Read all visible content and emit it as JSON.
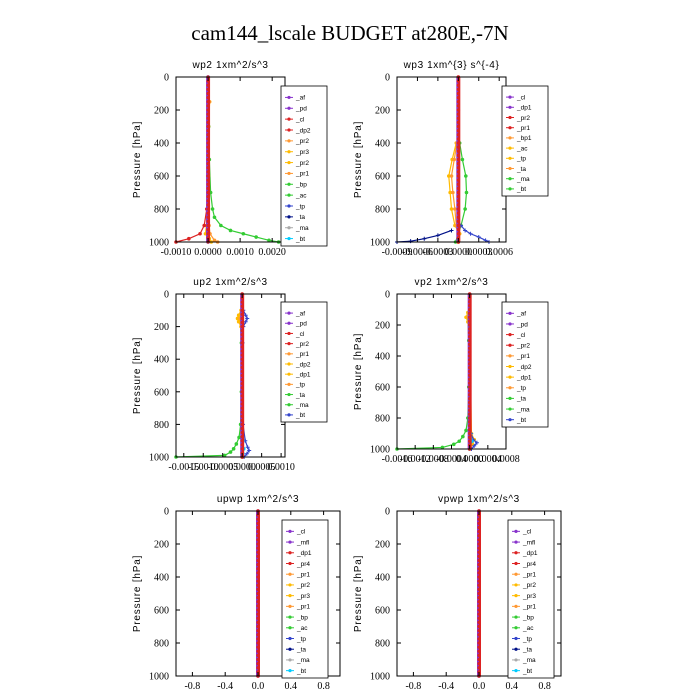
{
  "figure_title": "cam144_lscale  BUDGET at280E,-7N",
  "chart_data": [
    {
      "type": "line",
      "id": "wp2",
      "title": "wp2  1xm^2/s^3",
      "ylabel": "Pressure [hPa]",
      "xlabel": "",
      "xlim": [
        -0.001,
        0.0024
      ],
      "ylim": [
        1000,
        0
      ],
      "xticks": [
        -0.001,
        0.0,
        0.001,
        0.002
      ],
      "xtick_labels": [
        "-0.0010",
        "0.0000",
        "0.0010",
        "0.0020"
      ],
      "yticks": [
        0,
        200,
        400,
        600,
        800,
        1000
      ],
      "ytick_labels": [
        "0",
        "200",
        "400",
        "600",
        "800",
        "1000"
      ],
      "legend": [
        "_af",
        "_pd",
        "_cl",
        "_dp2",
        "_pr2",
        "_pr3",
        "_pr2",
        "_pr1",
        "_bp",
        "_ac",
        "_tp",
        "_ta",
        "_ma",
        "_bt"
      ],
      "series": [
        {
          "name": "_pr1",
          "color": "#33cc33",
          "marker": "o",
          "y": [
            150,
            300,
            500,
            700,
            800,
            850,
            900,
            930,
            950,
            970,
            990,
            1000
          ],
          "x": [
            2e-05,
            2e-05,
            4e-05,
            8e-05,
            0.00014,
            0.0002,
            0.0004,
            0.0007,
            0.0011,
            0.0015,
            0.0019,
            0.0022
          ]
        },
        {
          "name": "_pr2",
          "color": "#ffbb00",
          "marker": "o",
          "y": [
            150,
            300,
            600,
            800,
            900,
            950,
            980,
            1000
          ],
          "x": [
            5e-05,
            1e-05,
            1e-05,
            -2e-05,
            -5e-05,
            -8e-05,
            4e-05,
            0.0001
          ]
        },
        {
          "name": "_dp2",
          "color": "#ff9933",
          "marker": "o",
          "y": [
            150,
            300,
            600,
            800,
            900,
            950,
            990,
            1000
          ],
          "x": [
            4e-05,
            1e-05,
            0.0,
            1e-05,
            3e-05,
            6e-05,
            0.0002,
            0.0003
          ]
        },
        {
          "name": "_cl",
          "color": "#dd2222",
          "marker": "o",
          "y": [
            150,
            300,
            600,
            800,
            900,
            950,
            980,
            1000
          ],
          "x": [
            1e-05,
            0.0,
            -1e-05,
            -4e-05,
            -0.00012,
            -0.00025,
            -0.0006,
            -0.001
          ]
        },
        {
          "name": "_bt",
          "color": "#00ccff",
          "marker": "o",
          "y": [
            0,
            500,
            1000
          ],
          "x": [
            0.0,
            0.0,
            0.0
          ]
        },
        {
          "name": "_af",
          "color": "#8833cc",
          "marker": "o",
          "y": [
            0,
            150,
            300,
            500,
            700,
            900,
            1000
          ],
          "x": [
            0.0,
            0.0,
            0.0,
            0.0,
            0.0,
            0.0,
            0.0
          ]
        }
      ]
    },
    {
      "type": "line",
      "id": "wp3",
      "title": "wp3  1xm^{3} s^{-4}",
      "ylabel": "Pressure [hPa]",
      "xlabel": "",
      "xlim": [
        -0.0009,
        0.0007
      ],
      "ylim": [
        1000,
        0
      ],
      "xticks": [
        -0.0009,
        -0.0006,
        -0.0003,
        0.0,
        0.0003,
        0.0006
      ],
      "xtick_labels": [
        "-0.0009",
        "-0.0006",
        "-0.0003",
        "0.0000",
        "0.0003",
        "0.0006"
      ],
      "yticks": [
        0,
        200,
        400,
        600,
        800,
        1000
      ],
      "ytick_labels": [
        "0",
        "200",
        "400",
        "600",
        "800",
        "1000"
      ],
      "legend": [
        "_cl",
        "_dp1",
        "_pr2",
        "_pr1",
        "_bp1",
        "_ac",
        "_tp",
        "_ta",
        "_ma",
        "_bt"
      ],
      "series": [
        {
          "name": "_ac",
          "color": "#33cc33",
          "marker": "o",
          "y": [
            400,
            500,
            600,
            700,
            800,
            900,
            950,
            1000
          ],
          "x": [
            2e-05,
            6e-05,
            0.00011,
            0.00012,
            0.0001,
            4e-05,
            0.0,
            -4e-05
          ]
        },
        {
          "name": "_pr2",
          "color": "#ffbb00",
          "marker": "o",
          "y": [
            400,
            500,
            600,
            700,
            800,
            900,
            950,
            1000
          ],
          "x": [
            -3e-05,
            -9e-05,
            -0.00014,
            -0.00012,
            -0.0001,
            -5e-05,
            2e-05,
            0.0
          ]
        },
        {
          "name": "_pr1",
          "color": "#ff9933",
          "marker": "o",
          "y": [
            400,
            500,
            600,
            700,
            800,
            900,
            950,
            1000
          ],
          "x": [
            -2e-05,
            -6e-05,
            -0.0001,
            -8e-05,
            -5e-05,
            -3e-05,
            0.0,
            0.0
          ]
        },
        {
          "name": "_tp",
          "color": "#3344cc",
          "marker": "+",
          "y": [
            900,
            930,
            950,
            970,
            990,
            1000
          ],
          "x": [
            4e-05,
            0.0001,
            0.00018,
            0.0003,
            0.0004,
            0.00045
          ]
        },
        {
          "name": "_ta",
          "color": "#001188",
          "marker": "+",
          "y": [
            930,
            960,
            980,
            995,
            1000
          ],
          "x": [
            -0.0001,
            -0.0003,
            -0.0005,
            -0.0007,
            -0.0009
          ]
        },
        {
          "name": "_cl",
          "color": "#dd2222",
          "marker": "o",
          "y": [
            0,
            200,
            400,
            600,
            800,
            1000
          ],
          "x": [
            0.0,
            0.0,
            0.0,
            0.0,
            0.0,
            0.0
          ]
        }
      ]
    },
    {
      "type": "line",
      "id": "up2",
      "title": "up2  1xm^2/s^3",
      "ylabel": "Pressure [hPa]",
      "xlabel": "",
      "xlim": [
        -0.0017,
        0.0011
      ],
      "ylim": [
        1000,
        0
      ],
      "xticks": [
        -0.0015,
        -0.001,
        -0.0005,
        0.0,
        0.0005,
        0.001
      ],
      "xtick_labels": [
        "-0.0015",
        "-0.0010",
        "-0.0005",
        "0.0000",
        "0.0005",
        "0.0010"
      ],
      "yticks": [
        0,
        200,
        400,
        600,
        800,
        1000
      ],
      "ytick_labels": [
        "0",
        "200",
        "400",
        "600",
        "800",
        "1000"
      ],
      "legend": [
        "_af",
        "_pd",
        "_cl",
        "_pr2",
        "_pr1",
        "_dp2",
        "_dp1",
        "_tp",
        "_ta",
        "_ma",
        "_bt"
      ],
      "series": [
        {
          "name": "_dp1",
          "color": "#33cc33",
          "marker": "o",
          "y": [
            150,
            300,
            600,
            800,
            880,
            920,
            950,
            970,
            990,
            1000
          ],
          "x": [
            -5e-05,
            -2e-05,
            -2e-05,
            -4e-05,
            -8e-05,
            -0.00015,
            -0.00022,
            -0.0003,
            -0.00045,
            -0.0017
          ]
        },
        {
          "name": "_pr2",
          "color": "#ffbb00",
          "marker": "o",
          "y": [
            100,
            130,
            150,
            170,
            200,
            300,
            900,
            1000
          ],
          "x": [
            -3e-05,
            -9e-05,
            -0.00012,
            -9e-05,
            -3e-05,
            0.0,
            0.0,
            0.0
          ]
        },
        {
          "name": "_pr1",
          "color": "#ff9933",
          "marker": "o",
          "y": [
            120,
            150,
            180,
            250,
            900,
            1000
          ],
          "x": [
            -2e-05,
            -5e-05,
            -2e-05,
            0.0,
            0.0,
            0.0
          ]
        },
        {
          "name": "_tp",
          "color": "#3344cc",
          "marker": "+",
          "y": [
            100,
            130,
            150,
            170,
            200,
            300,
            800,
            900,
            940,
            960,
            980,
            1000
          ],
          "x": [
            3e-05,
            9e-05,
            0.00013,
            9e-05,
            3e-05,
            1e-05,
            2e-05,
            8e-05,
            0.00014,
            0.00018,
            0.00012,
            5e-05
          ]
        },
        {
          "name": "_bt",
          "color": "#00ccff",
          "marker": "o",
          "y": [
            900,
            950,
            980,
            1000
          ],
          "x": [
            2e-05,
            4e-05,
            2e-05,
            0.0
          ]
        },
        {
          "name": "_cl",
          "color": "#dd2222",
          "marker": "o",
          "y": [
            0,
            200,
            400,
            600,
            800,
            1000
          ],
          "x": [
            0.0,
            0.0,
            0.0,
            0.0,
            0.0,
            0.0
          ]
        }
      ]
    },
    {
      "type": "line",
      "id": "vp2",
      "title": "vp2  1xm^2/s^3",
      "ylabel": "Pressure [hPa]",
      "xlabel": "",
      "xlim": [
        -0.0016,
        0.0008
      ],
      "ylim": [
        1000,
        0
      ],
      "xticks": [
        -0.0016,
        -0.0012,
        -0.0008,
        -0.0004,
        0.0,
        0.0004,
        0.0008
      ],
      "xtick_labels": [
        "-0.0016",
        "-0.0012",
        "-0.0008",
        "-0.0004",
        "0.0000",
        "0.0004",
        "0.0008"
      ],
      "yticks": [
        0,
        200,
        400,
        600,
        800,
        1000
      ],
      "ytick_labels": [
        "0",
        "200",
        "400",
        "600",
        "800",
        "1000"
      ],
      "legend": [
        "_af",
        "_pd",
        "_cl",
        "_pr2",
        "_pr1",
        "_dp2",
        "_dp1",
        "_tp",
        "_ta",
        "_ma",
        "_bt"
      ],
      "series": [
        {
          "name": "_dp1",
          "color": "#33cc33",
          "marker": "o",
          "y": [
            150,
            300,
            600,
            800,
            880,
            920,
            950,
            970,
            990,
            1000
          ],
          "x": [
            -4e-05,
            -2e-05,
            -2e-05,
            -4e-05,
            -8e-05,
            -0.00015,
            -0.00023,
            -0.00035,
            -0.0006,
            -0.0016
          ]
        },
        {
          "name": "_pr2",
          "color": "#ffbb00",
          "marker": "o",
          "y": [
            120,
            150,
            180,
            250,
            900,
            940,
            970,
            1000
          ],
          "x": [
            -4e-05,
            -8e-05,
            -4e-05,
            0.0,
            4e-05,
            0.0001,
            6e-05,
            0.0
          ]
        },
        {
          "name": "_pr1",
          "color": "#ff9933",
          "marker": "o",
          "y": [
            150,
            250,
            900,
            1000
          ],
          "x": [
            -3e-05,
            0.0,
            3e-05,
            0.0
          ]
        },
        {
          "name": "_tp",
          "color": "#3344cc",
          "marker": "+",
          "y": [
            900,
            940,
            960,
            980,
            1000
          ],
          "x": [
            3e-05,
            8e-05,
            0.00016,
            0.0001,
            4e-05
          ]
        },
        {
          "name": "_bt",
          "color": "#00ccff",
          "marker": "o",
          "y": [
            900,
            950,
            1000
          ],
          "x": [
            2e-05,
            5e-05,
            0.0
          ]
        },
        {
          "name": "_cl",
          "color": "#dd2222",
          "marker": "o",
          "y": [
            0,
            200,
            400,
            600,
            800,
            1000
          ],
          "x": [
            0.0,
            0.0,
            0.0,
            0.0,
            0.0,
            0.0
          ]
        }
      ]
    },
    {
      "type": "line",
      "id": "upwp",
      "title": "upwp   1xm^2/s^3",
      "ylabel": "Pressure [hPa]",
      "xlabel": "",
      "xlim": [
        -1.0,
        1.0
      ],
      "ylim": [
        1000,
        0
      ],
      "xticks": [
        -0.8,
        -0.4,
        0.0,
        0.4,
        0.8
      ],
      "xtick_labels": [
        "-0.8",
        "-0.4",
        "0.0",
        "0.4",
        "0.8"
      ],
      "yticks": [
        0,
        200,
        400,
        600,
        800,
        1000
      ],
      "ytick_labels": [
        "0",
        "200",
        "400",
        "600",
        "800",
        "1000"
      ],
      "legend": [
        "_cl",
        "_mfl",
        "_dp1",
        "_pr4",
        "_pr1",
        "_pr2",
        "_pr3",
        "_pr1",
        "_bp",
        "_ac",
        "_tp",
        "_ta",
        "_ma",
        "_bt"
      ],
      "series": [
        {
          "name": "_mfl",
          "color": "#8833cc",
          "marker": "o",
          "y": [
            0,
            200,
            400,
            600,
            800,
            1000
          ],
          "x": [
            0.0,
            0.0,
            0.0,
            0.0,
            0.0,
            0.0
          ]
        },
        {
          "name": "_cl",
          "color": "#dd2222",
          "marker": "o",
          "y": [
            0,
            200,
            400,
            600,
            800,
            1000
          ],
          "x": [
            0.0,
            0.0,
            0.0,
            0.0,
            0.0,
            0.0
          ]
        }
      ]
    },
    {
      "type": "line",
      "id": "vpwp",
      "title": "vpwp   1xm^2/s^3",
      "ylabel": "Pressure [hPa]",
      "xlabel": "",
      "xlim": [
        -1.0,
        1.0
      ],
      "ylim": [
        1000,
        0
      ],
      "xticks": [
        -0.8,
        -0.4,
        0.0,
        0.4,
        0.8
      ],
      "xtick_labels": [
        "-0.8",
        "-0.4",
        "0.0",
        "0.4",
        "0.8"
      ],
      "yticks": [
        0,
        200,
        400,
        600,
        800,
        1000
      ],
      "ytick_labels": [
        "0",
        "200",
        "400",
        "600",
        "800",
        "1000"
      ],
      "legend": [
        "_cl",
        "_mfl",
        "_dp1",
        "_pr4",
        "_pr1",
        "_pr2",
        "_pr3",
        "_pr1",
        "_bp",
        "_ac",
        "_tp",
        "_ta",
        "_ma",
        "_bt"
      ],
      "series": [
        {
          "name": "_mfl",
          "color": "#8833cc",
          "marker": "o",
          "y": [
            0,
            200,
            400,
            600,
            800,
            1000
          ],
          "x": [
            0.0,
            0.0,
            0.0,
            0.0,
            0.0,
            0.0
          ]
        },
        {
          "name": "_cl",
          "color": "#dd2222",
          "marker": "o",
          "y": [
            0,
            200,
            400,
            600,
            800,
            1000
          ],
          "x": [
            0.0,
            0.0,
            0.0,
            0.0,
            0.0,
            0.0
          ]
        }
      ]
    }
  ],
  "legend_colors": [
    "#8833cc",
    "#8833cc",
    "#dd2222",
    "#dd2222",
    "#ff9933",
    "#ffbb00",
    "#ffbb00",
    "#ff9933",
    "#33cc33",
    "#33cc33",
    "#3344cc",
    "#001188",
    "#aaaaaa",
    "#00ccff"
  ]
}
